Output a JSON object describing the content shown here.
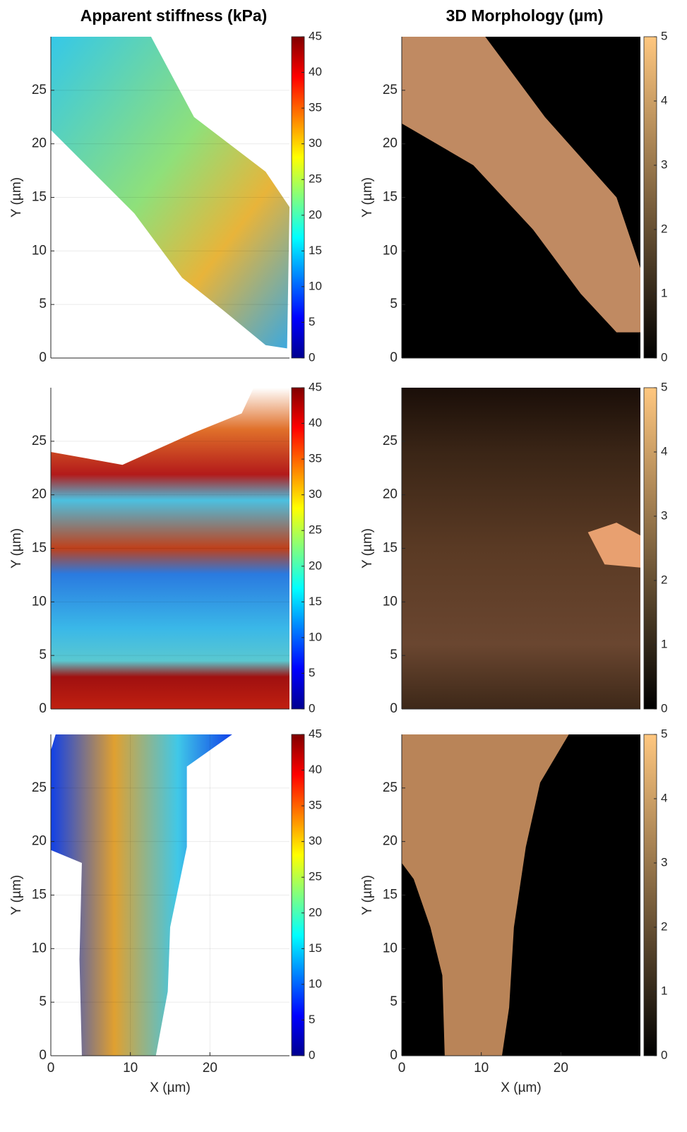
{
  "chart_data": [
    {
      "type": "heatmap",
      "title": "Apparent stiffness (kPa)",
      "ylabel": "Y (µm)",
      "xlim": [
        0,
        30
      ],
      "ylim": [
        0,
        30
      ],
      "yticks": [
        0,
        5,
        10,
        15,
        20,
        25
      ],
      "clim": [
        0,
        45
      ],
      "cticks": [
        0,
        5,
        10,
        15,
        20,
        25,
        30,
        35,
        40,
        45
      ],
      "colormap": "jet",
      "grid": true
    },
    {
      "type": "heatmap",
      "title": "3D Morphology  (µm)",
      "ylabel": "Y (µm)",
      "xlim": [
        0,
        30
      ],
      "ylim": [
        0,
        30
      ],
      "yticks": [
        0,
        5,
        10,
        15,
        20,
        25
      ],
      "clim": [
        0,
        5
      ],
      "cticks": [
        0,
        1,
        2,
        3,
        4,
        5
      ],
      "colormap": "copper",
      "grid": false
    },
    {
      "type": "heatmap",
      "ylabel": "Y (µm)",
      "xlim": [
        0,
        30
      ],
      "ylim": [
        0,
        30
      ],
      "yticks": [
        0,
        5,
        10,
        15,
        20,
        25
      ],
      "clim": [
        0,
        45
      ],
      "cticks": [
        0,
        5,
        10,
        15,
        20,
        25,
        30,
        35,
        40,
        45
      ],
      "colormap": "jet",
      "grid": true
    },
    {
      "type": "heatmap",
      "ylabel": "Y (µm)",
      "xlim": [
        0,
        30
      ],
      "ylim": [
        0,
        30
      ],
      "yticks": [
        0,
        5,
        10,
        15,
        20,
        25
      ],
      "clim": [
        0,
        5
      ],
      "cticks": [
        0,
        1,
        2,
        3,
        4,
        5
      ],
      "colormap": "copper",
      "grid": false
    },
    {
      "type": "heatmap",
      "xlabel": "X (µm)",
      "ylabel": "Y (µm)",
      "xlim": [
        0,
        30
      ],
      "ylim": [
        0,
        30
      ],
      "xticks": [
        0,
        10,
        20
      ],
      "yticks": [
        0,
        5,
        10,
        15,
        20,
        25
      ],
      "clim": [
        0,
        45
      ],
      "cticks": [
        0,
        5,
        10,
        15,
        20,
        25,
        30,
        35,
        40,
        45
      ],
      "colormap": "jet",
      "grid": true
    },
    {
      "type": "heatmap",
      "xlabel": "X (µm)",
      "ylabel": "Y (µm)",
      "xlim": [
        0,
        30
      ],
      "ylim": [
        0,
        30
      ],
      "xticks": [
        0,
        10,
        20
      ],
      "yticks": [
        0,
        5,
        10,
        15,
        20,
        25
      ],
      "clim": [
        0,
        5
      ],
      "cticks": [
        0,
        1,
        2,
        3,
        4,
        5
      ],
      "colormap": "copper",
      "grid": false
    }
  ]
}
